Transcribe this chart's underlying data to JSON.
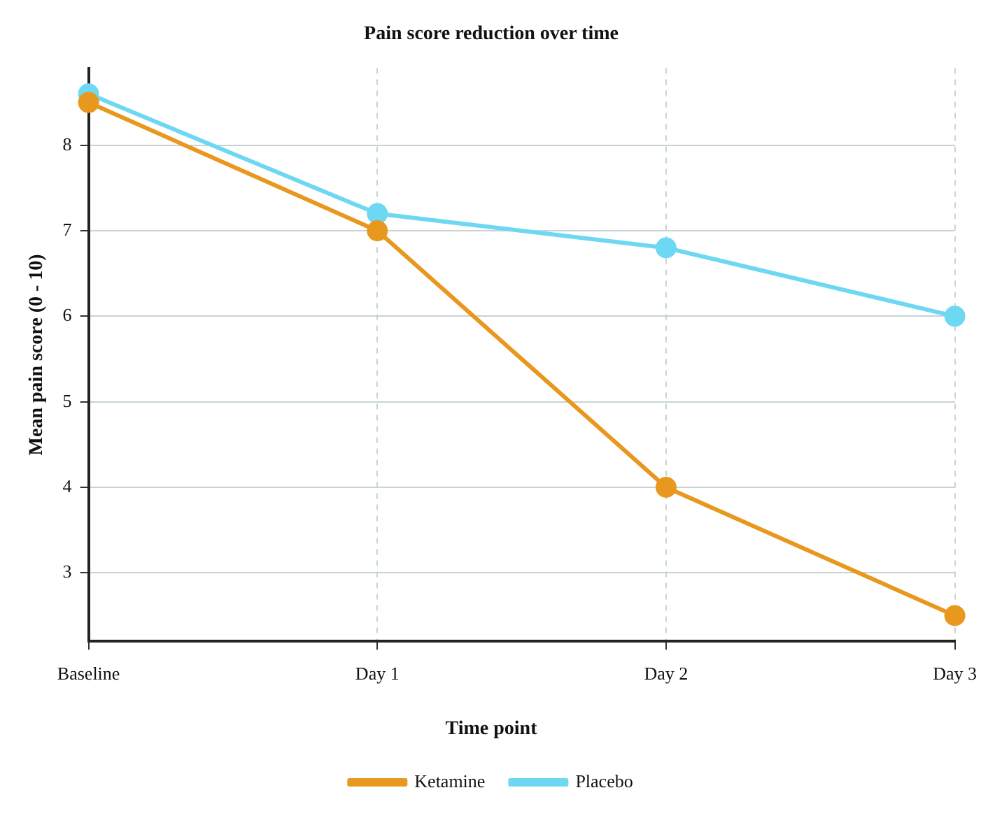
{
  "chart_data": {
    "type": "line",
    "title": "Pain score reduction over time",
    "ylabel": "Mean pain score (0 - 10)",
    "legend_title": "Time point",
    "categories": [
      "Baseline",
      "Day 1",
      "Day 2",
      "Day 3"
    ],
    "series": [
      {
        "name": "Ketamine",
        "color": "#e8981e",
        "values": [
          8.5,
          7,
          4,
          2.5
        ]
      },
      {
        "name": "Placebo",
        "color": "#6ed8f2",
        "values": [
          8.6,
          7.2,
          6.8,
          6.0
        ]
      }
    ],
    "ylim": [
      2.2,
      8.9
    ],
    "yticks": [
      3,
      4,
      5,
      6,
      7,
      8
    ],
    "grid": true,
    "legend": "bottom",
    "marker": "circle",
    "line_style": "solid"
  }
}
